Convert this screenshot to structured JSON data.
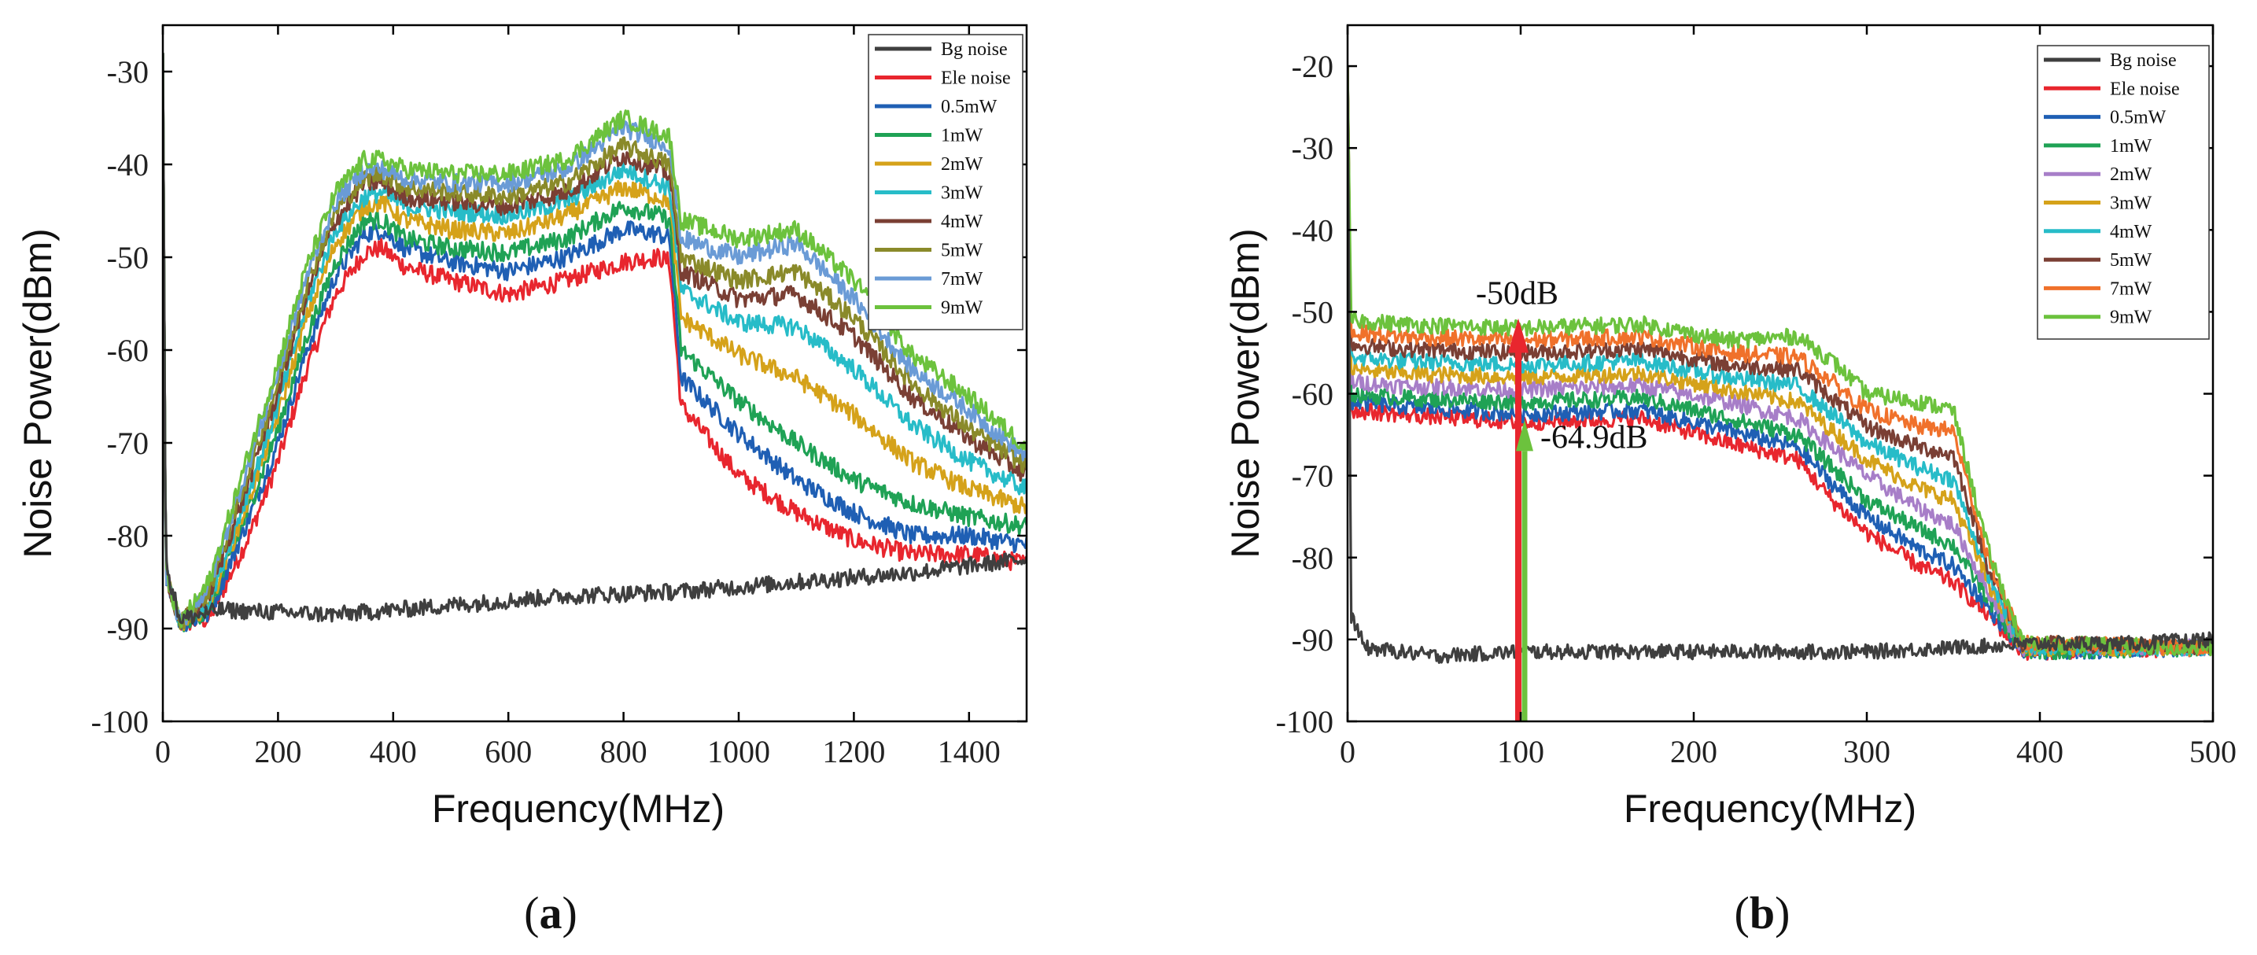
{
  "colors": {
    "Bg noise": "#3f3f3f",
    "Ele noise": "#e8262e",
    "0.5mW": "#1f5fb4",
    "1mW": "#1fa255",
    "2mW_a": "#d5a21a",
    "2mW_b": "#a77ec8",
    "3mW_a": "#27bcc8",
    "3mW_b": "#d5a21a",
    "4mW_a": "#7a3f34",
    "4mW_b": "#27bcc8",
    "5mW_a": "#8a8a2a",
    "5mW_b": "#7a3f34",
    "7mW_a": "#6a9bd6",
    "7mW_b": "#f0712b",
    "9mW": "#6cc23d"
  },
  "chart_data": [
    {
      "type": "line",
      "panel_label": "(a)",
      "xlabel": "Frequency(MHz)",
      "ylabel": "Noise Power(dBm)",
      "xlim": [
        0,
        1500
      ],
      "ylim": [
        -100,
        -25
      ],
      "xticks": [
        0,
        200,
        400,
        600,
        800,
        1000,
        1200,
        1400
      ],
      "xtick_labels": [
        "0",
        "200",
        "400",
        "600",
        "800",
        "1000",
        "1200",
        "1400"
      ],
      "yticks": [
        -100,
        -90,
        -80,
        -70,
        -60,
        -50,
        -40,
        -30
      ],
      "ytick_labels": [
        "-100",
        "-90",
        "-80",
        "-70",
        "-60",
        "-50",
        "-40",
        "-30"
      ],
      "legend_position": "top-right",
      "series": [
        {
          "name": "Bg noise",
          "color_key": "Bg noise",
          "x": [
            0,
            5,
            30,
            100,
            300,
            500,
            700,
            900,
            1100,
            1300,
            1500
          ],
          "y": [
            -28,
            -83,
            -89,
            -88,
            -88.5,
            -87.5,
            -86.5,
            -86,
            -85,
            -84,
            -82.5
          ]
        },
        {
          "name": "Ele noise",
          "color_key": "Ele noise",
          "x": [
            0,
            5,
            30,
            80,
            150,
            200,
            250,
            300,
            350,
            380,
            420,
            500,
            600,
            700,
            800,
            860,
            880,
            900,
            1000,
            1100,
            1200,
            1300,
            1400,
            1500
          ],
          "y": [
            -28,
            -84,
            -89.5,
            -89,
            -80,
            -72,
            -62,
            -54,
            -49.5,
            -49,
            -51,
            -52.5,
            -54,
            -52.5,
            -50.5,
            -50,
            -50.5,
            -66,
            -73.5,
            -77.5,
            -80.5,
            -82,
            -82,
            -83
          ]
        },
        {
          "name": "0.5mW",
          "color_key": "0.5mW",
          "x": [
            0,
            5,
            30,
            80,
            150,
            200,
            250,
            300,
            350,
            380,
            420,
            500,
            600,
            700,
            800,
            860,
            880,
            900,
            1000,
            1100,
            1200,
            1300,
            1400,
            1500
          ],
          "y": [
            -28,
            -84,
            -89.5,
            -88.5,
            -78,
            -70,
            -60,
            -52,
            -47.5,
            -47,
            -49,
            -50.5,
            -51.5,
            -50,
            -47,
            -47.5,
            -48,
            -63,
            -69,
            -74,
            -77.5,
            -80,
            -80,
            -81
          ]
        },
        {
          "name": "1mW",
          "color_key": "1mW",
          "x": [
            0,
            5,
            30,
            80,
            150,
            200,
            250,
            300,
            350,
            380,
            420,
            500,
            600,
            700,
            800,
            860,
            880,
            900,
            1000,
            1100,
            1200,
            1300,
            1400,
            1500
          ],
          "y": [
            -28,
            -84,
            -89.5,
            -88,
            -77,
            -68.5,
            -58.5,
            -50.5,
            -46,
            -46,
            -48,
            -49,
            -49.5,
            -48,
            -44.5,
            -45.5,
            -46,
            -60,
            -65.5,
            -70,
            -74,
            -76.5,
            -78,
            -79
          ]
        },
        {
          "name": "2mW",
          "color_key": "2mW_a",
          "x": [
            0,
            5,
            30,
            80,
            150,
            200,
            250,
            300,
            350,
            380,
            420,
            500,
            600,
            700,
            800,
            860,
            880,
            900,
            1000,
            1100,
            1200,
            1300,
            1400,
            1500
          ],
          "y": [
            -28,
            -84,
            -89.5,
            -87.5,
            -76,
            -67,
            -56.5,
            -48.5,
            -44.5,
            -44,
            -46,
            -47,
            -47.5,
            -45.5,
            -42.5,
            -43.5,
            -44,
            -56.5,
            -60.5,
            -63,
            -67,
            -72,
            -75,
            -77
          ]
        },
        {
          "name": "3mW",
          "color_key": "3mW_a",
          "x": [
            0,
            5,
            30,
            80,
            150,
            200,
            250,
            300,
            350,
            380,
            420,
            500,
            600,
            700,
            800,
            860,
            880,
            900,
            1000,
            1100,
            1200,
            1300,
            1400,
            1500
          ],
          "y": [
            -28,
            -84,
            -89.5,
            -87,
            -75,
            -66,
            -55,
            -47,
            -43.5,
            -43,
            -44.5,
            -45,
            -45.5,
            -44,
            -40.5,
            -42,
            -42.5,
            -53.5,
            -57,
            -57.5,
            -62,
            -68,
            -72,
            -75
          ]
        },
        {
          "name": "4mW",
          "color_key": "4mW_a",
          "x": [
            0,
            5,
            30,
            80,
            150,
            200,
            250,
            300,
            350,
            380,
            420,
            500,
            600,
            700,
            800,
            860,
            880,
            900,
            1000,
            1100,
            1200,
            1300,
            1400,
            1500
          ],
          "y": [
            -28,
            -84,
            -89.5,
            -86.5,
            -74,
            -64.5,
            -54,
            -46,
            -42,
            -42,
            -43.5,
            -44,
            -44.5,
            -43,
            -39,
            -40.5,
            -41,
            -51.5,
            -54.5,
            -54,
            -58.5,
            -65,
            -69.5,
            -73.5
          ]
        },
        {
          "name": "5mW",
          "color_key": "5mW_a",
          "x": [
            0,
            5,
            30,
            80,
            150,
            200,
            250,
            300,
            350,
            380,
            420,
            500,
            600,
            700,
            800,
            860,
            880,
            900,
            1000,
            1100,
            1200,
            1300,
            1400,
            1500
          ],
          "y": [
            -28,
            -84,
            -89.5,
            -86,
            -73,
            -63.5,
            -53,
            -45,
            -41.5,
            -41,
            -42.5,
            -43,
            -43.5,
            -42,
            -38,
            -39.5,
            -40,
            -50,
            -52.5,
            -51.5,
            -56.5,
            -63.5,
            -68.5,
            -72.5
          ]
        },
        {
          "name": "7mW",
          "color_key": "7mW_a",
          "x": [
            0,
            5,
            30,
            80,
            150,
            200,
            250,
            300,
            350,
            380,
            420,
            500,
            600,
            700,
            800,
            860,
            880,
            900,
            1000,
            1100,
            1200,
            1300,
            1400,
            1500
          ],
          "y": [
            -28,
            -84,
            -89.5,
            -85.5,
            -72,
            -62.5,
            -52,
            -44,
            -40.5,
            -40.5,
            -41.5,
            -42,
            -42,
            -40.5,
            -36,
            -37.5,
            -38,
            -48,
            -50,
            -48.5,
            -54.5,
            -62,
            -66.5,
            -71.5
          ]
        },
        {
          "name": "9mW",
          "color_key": "9mW",
          "x": [
            0,
            5,
            30,
            80,
            150,
            200,
            250,
            300,
            350,
            380,
            420,
            500,
            600,
            700,
            800,
            860,
            880,
            900,
            1000,
            1100,
            1200,
            1300,
            1400,
            1500
          ],
          "y": [
            -28,
            -84,
            -89.5,
            -85,
            -71,
            -61.5,
            -51,
            -43,
            -39.5,
            -39.5,
            -40.5,
            -41,
            -41,
            -39.5,
            -35,
            -36.5,
            -37,
            -46,
            -48,
            -47,
            -52.5,
            -60.5,
            -65,
            -70.5
          ]
        }
      ]
    },
    {
      "type": "line",
      "panel_label": "(b)",
      "xlabel": "Frequency(MHz)",
      "ylabel": "Noise Power(dBm)",
      "xlim": [
        0,
        500
      ],
      "ylim": [
        -100,
        -15
      ],
      "xticks": [
        0,
        100,
        200,
        300,
        400,
        500
      ],
      "xtick_labels": [
        "0",
        "100",
        "200",
        "300",
        "400",
        "500"
      ],
      "yticks": [
        -100,
        -90,
        -80,
        -70,
        -60,
        -50,
        -40,
        -30,
        -20
      ],
      "ytick_labels": [
        "-100",
        "-90",
        "-80",
        "-70",
        "-60",
        "-50",
        "-40",
        "-30",
        "-20"
      ],
      "legend_position": "top-right",
      "annotations": [
        {
          "text": "-50dB",
          "x": 100,
          "y": -50
        },
        {
          "text": "-64.9dB",
          "x": 100,
          "y": -64.9
        }
      ],
      "series": [
        {
          "name": "Bg noise",
          "color_key": "Bg noise",
          "x": [
            0,
            2,
            10,
            50,
            100,
            150,
            200,
            250,
            300,
            350,
            400,
            450,
            500
          ],
          "y": [
            -20,
            -87,
            -91,
            -92,
            -91.5,
            -91.5,
            -91.5,
            -91.5,
            -91.5,
            -91,
            -90.5,
            -90.5,
            -90
          ]
        },
        {
          "name": "Ele noise",
          "color_key": "Ele noise",
          "x": [
            0,
            2,
            30,
            100,
            170,
            220,
            260,
            280,
            300,
            330,
            350,
            370,
            390,
            500
          ],
          "y": [
            -20,
            -62,
            -62.5,
            -63.5,
            -63,
            -66,
            -68,
            -73,
            -77,
            -81,
            -83,
            -87,
            -91.5,
            -91
          ]
        },
        {
          "name": "0.5mW",
          "color_key": "0.5mW",
          "x": [
            0,
            2,
            30,
            100,
            170,
            220,
            260,
            280,
            300,
            330,
            350,
            370,
            390,
            500
          ],
          "y": [
            -20,
            -61,
            -61.5,
            -62.5,
            -62,
            -64.5,
            -66.5,
            -71,
            -75,
            -79,
            -81,
            -86,
            -91.5,
            -91
          ]
        },
        {
          "name": "1mW",
          "color_key": "1mW",
          "x": [
            0,
            2,
            30,
            100,
            170,
            220,
            260,
            280,
            300,
            330,
            350,
            370,
            390,
            500
          ],
          "y": [
            -20,
            -60,
            -60.5,
            -61,
            -60.5,
            -63,
            -65,
            -69,
            -73,
            -76.5,
            -78.5,
            -85,
            -91.5,
            -91
          ]
        },
        {
          "name": "2mW",
          "color_key": "2mW_b",
          "x": [
            0,
            2,
            30,
            100,
            170,
            220,
            260,
            280,
            300,
            330,
            350,
            370,
            390,
            500
          ],
          "y": [
            -20,
            -58.5,
            -59,
            -59.5,
            -59,
            -61,
            -63,
            -66.5,
            -70,
            -74,
            -76,
            -84,
            -91,
            -91
          ]
        },
        {
          "name": "3mW",
          "color_key": "3mW_b",
          "x": [
            0,
            2,
            30,
            100,
            170,
            220,
            260,
            280,
            300,
            330,
            350,
            370,
            390,
            500
          ],
          "y": [
            -20,
            -57,
            -57.5,
            -58,
            -57.5,
            -59.5,
            -61,
            -64.5,
            -68,
            -71.5,
            -73,
            -83,
            -91,
            -91
          ]
        },
        {
          "name": "4mW",
          "color_key": "4mW_b",
          "x": [
            0,
            2,
            30,
            100,
            170,
            220,
            260,
            280,
            300,
            330,
            350,
            370,
            390,
            500
          ],
          "y": [
            -20,
            -55.5,
            -56,
            -56.5,
            -56,
            -58,
            -59,
            -62.5,
            -66,
            -69,
            -70.5,
            -82,
            -91,
            -91
          ]
        },
        {
          "name": "5mW",
          "color_key": "5mW_b",
          "x": [
            0,
            2,
            30,
            100,
            170,
            220,
            260,
            280,
            300,
            330,
            350,
            370,
            390,
            500
          ],
          "y": [
            -20,
            -54,
            -54.5,
            -55,
            -54.5,
            -56.5,
            -57,
            -60.5,
            -64,
            -66.5,
            -67.5,
            -81,
            -90.5,
            -91
          ]
        },
        {
          "name": "7mW",
          "color_key": "7mW_b",
          "x": [
            0,
            2,
            30,
            100,
            170,
            220,
            260,
            280,
            300,
            330,
            350,
            370,
            390,
            500
          ],
          "y": [
            -20,
            -52.5,
            -53,
            -53.5,
            -53,
            -55,
            -55.5,
            -58.5,
            -62,
            -64,
            -64.5,
            -80,
            -90.5,
            -91
          ]
        },
        {
          "name": "9mW",
          "color_key": "9mW",
          "x": [
            0,
            2,
            30,
            100,
            170,
            220,
            260,
            280,
            300,
            330,
            350,
            370,
            390,
            500
          ],
          "y": [
            -20,
            -51,
            -51.5,
            -52,
            -51.5,
            -53.5,
            -53,
            -56,
            -60,
            -61,
            -62,
            -79,
            -90.5,
            -91
          ]
        }
      ]
    }
  ]
}
